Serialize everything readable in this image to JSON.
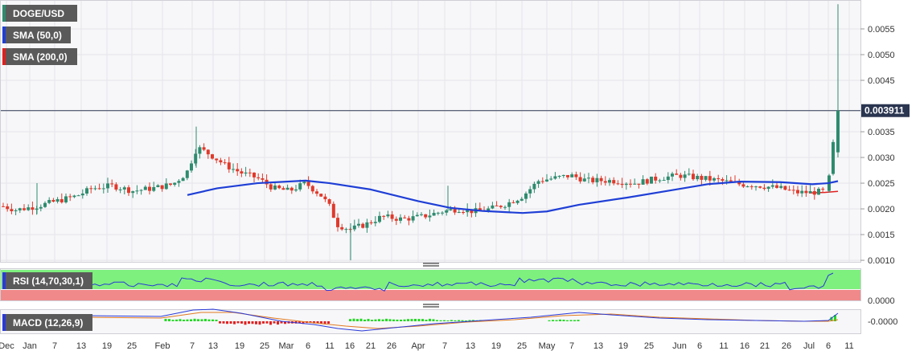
{
  "legend": {
    "symbol": "DOGE/USD",
    "sma50": "SMA (50,0)",
    "sma200": "SMA (200,0)",
    "rsi": "RSI (14,70,30,1)",
    "macd": "MACD (12,26,9)"
  },
  "colors": {
    "up": "#2e8b6e",
    "down": "#e0392b",
    "sma50": "#1f3fd6",
    "sma200": "#e02020",
    "rsi_line": "#2a3ad8",
    "overbought": "#7ef07e",
    "oversold": "#f08a8a",
    "macd_line": "#2a3ad8",
    "signal_line": "#e07a20",
    "hist_up": "#22d822",
    "hist_down": "#e02020",
    "price_tag": "#2a3550"
  },
  "chart_data": {
    "type": "candlestick",
    "title": "DOGE/USD",
    "current_price": "0.003911",
    "current_price_value": 0.003911,
    "ylim": [
      0.00097,
      0.006
    ],
    "y_ticks": [
      "0.0055",
      "0.0050",
      "0.0045",
      "0.0035",
      "0.0030",
      "0.0025",
      "0.0020",
      "0.0015",
      "0.0010"
    ],
    "y_tick_values": [
      0.0055,
      0.005,
      0.0045,
      0.0035,
      0.003,
      0.0025,
      0.002,
      0.0015,
      0.001
    ],
    "x_ticks": [
      "Dec",
      "Jan",
      "7",
      "13",
      "19",
      "25",
      "Feb",
      "7",
      "13",
      "19",
      "25",
      "Mar",
      "6",
      "11",
      "16",
      "21",
      "26",
      "Apr",
      "7",
      "13",
      "19",
      "25",
      "May",
      "7",
      "13",
      "19",
      "25",
      "Jun",
      "6",
      "11",
      "16",
      "21",
      "26",
      "Jul",
      "6",
      "11"
    ],
    "rsi_ticks": [],
    "macd_ticks": [
      "-0.0000"
    ],
    "rsi_zero_label": "0.0000"
  }
}
